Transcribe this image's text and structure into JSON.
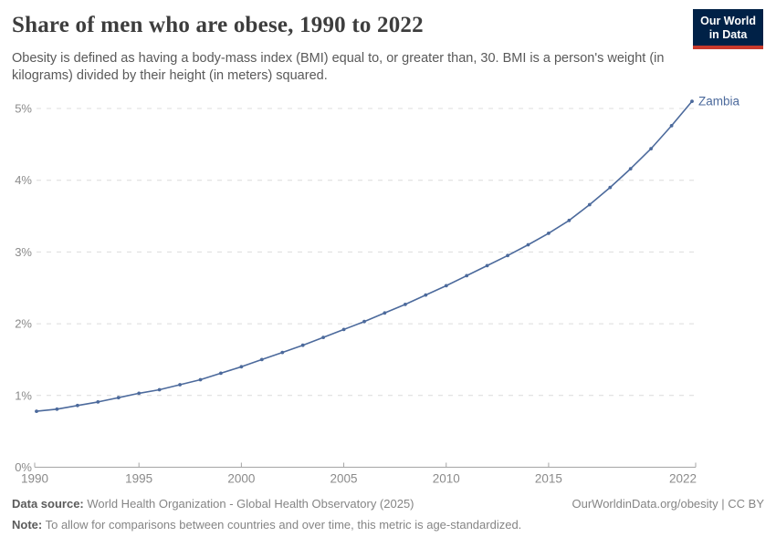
{
  "header": {
    "title": "Share of men who are obese, 1990 to 2022",
    "subtitle": "Obesity is defined as having a body-mass index (BMI) equal to, or greater than, 30. BMI is a person's weight (in kilograms) divided by their height (in meters) squared.",
    "logo": {
      "line1": "Our World",
      "line2": "in Data",
      "bg_color": "#002147",
      "accent_color": "#c9392c"
    }
  },
  "chart_data": {
    "type": "line",
    "title": "Share of men who are obese, 1990 to 2022",
    "xlabel": "",
    "ylabel": "",
    "xlim": [
      1990,
      2022
    ],
    "ylim": [
      0,
      5.3
    ],
    "grid": "horizontal-dashed",
    "legend_position": "end-of-line-label",
    "x_ticks": [
      1990,
      1995,
      2000,
      2005,
      2010,
      2015,
      2022
    ],
    "y_ticks": [
      {
        "value": 0,
        "label": "0%"
      },
      {
        "value": 1,
        "label": "1%"
      },
      {
        "value": 2,
        "label": "2%"
      },
      {
        "value": 3,
        "label": "3%"
      },
      {
        "value": 4,
        "label": "4%"
      },
      {
        "value": 5,
        "label": "5%"
      }
    ],
    "series": [
      {
        "name": "Zambia",
        "color": "#4C6A9C",
        "x": [
          1990,
          1991,
          1992,
          1993,
          1994,
          1995,
          1996,
          1997,
          1998,
          1999,
          2000,
          2001,
          2002,
          2003,
          2004,
          2005,
          2006,
          2007,
          2008,
          2009,
          2010,
          2011,
          2012,
          2013,
          2014,
          2015,
          2016,
          2017,
          2018,
          2019,
          2020,
          2021,
          2022
        ],
        "values": [
          0.78,
          0.81,
          0.86,
          0.91,
          0.97,
          1.03,
          1.08,
          1.15,
          1.22,
          1.31,
          1.4,
          1.5,
          1.6,
          1.7,
          1.81,
          1.92,
          2.03,
          2.15,
          2.27,
          2.4,
          2.53,
          2.67,
          2.81,
          2.95,
          3.1,
          3.26,
          3.44,
          3.66,
          3.9,
          4.16,
          4.44,
          4.76,
          5.1
        ]
      }
    ],
    "colors": {
      "gridline": "#dcdcdc",
      "axis": "#a5a5a5",
      "tick_label": "#8b8b8b"
    }
  },
  "footer": {
    "datasource_label": "Data source:",
    "datasource_text": " World Health Organization - Global Health Observatory (2025)",
    "rights": "OurWorldinData.org/obesity | CC BY",
    "note_label": "Note:",
    "note_text": " To allow for comparisons between countries and over time, this metric is age-standardized."
  }
}
